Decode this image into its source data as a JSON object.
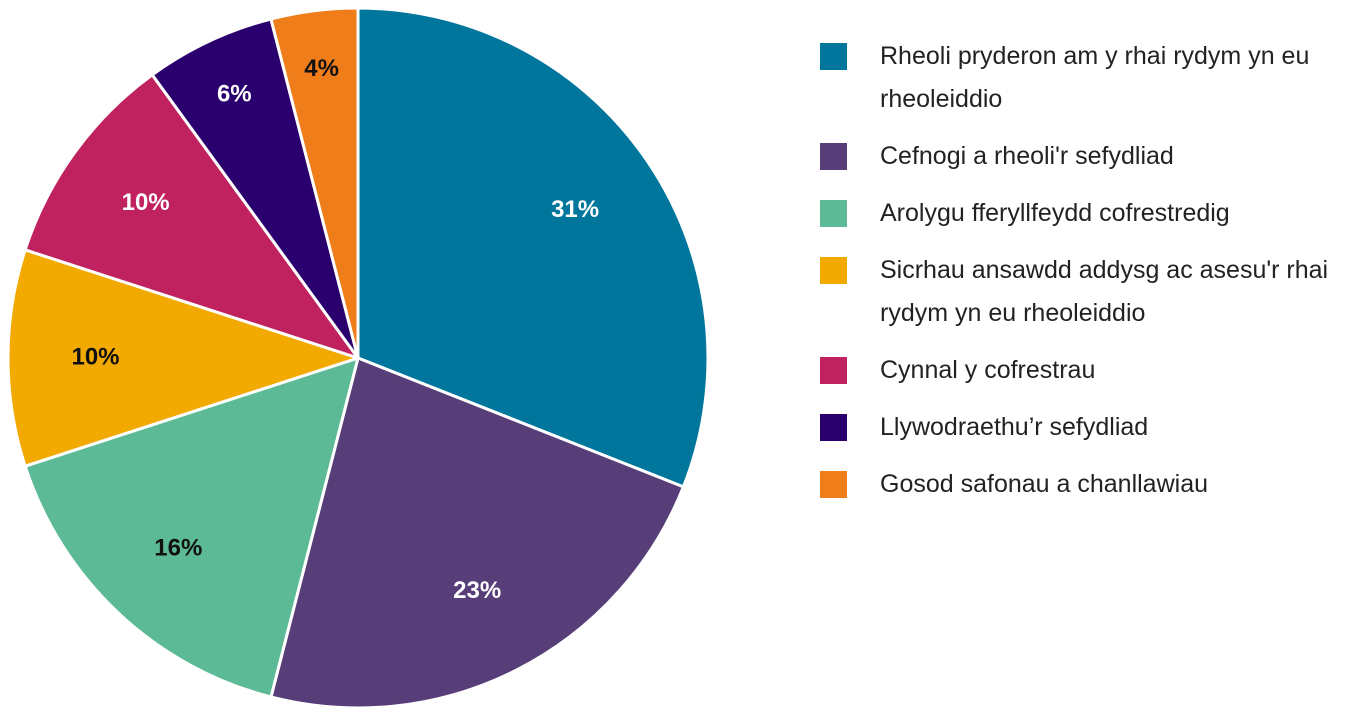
{
  "chart_data": {
    "type": "pie",
    "categories": [
      "Rheoli pryderon am y rhai rydym yn eu rheoleiddio",
      "Cefnogi a rheoli'r sefydliad",
      "Arolygu fferyllfeydd cofrestredig",
      "Sicrhau ansawdd addysg ac asesu'r rhai rydym yn eu rheoleiddio",
      "Cynnal y cofrestrau",
      "Llywodraethu’r sefydliad",
      "Gosod safonau a chanllawiau"
    ],
    "values": [
      31,
      23,
      16,
      10,
      10,
      6,
      4
    ],
    "value_labels": [
      "31%",
      "23%",
      "16%",
      "10%",
      "10%",
      "6%",
      "4%"
    ],
    "colors": [
      "#00769c",
      "#573e78",
      "#5dba97",
      "#f2a900",
      "#c0215f",
      "#2a006e",
      "#ee7d1a"
    ],
    "label_colors": [
      "#ffffff",
      "#ffffff",
      "#111111",
      "#111111",
      "#ffffff",
      "#ffffff",
      "#111111"
    ],
    "legend": "right"
  }
}
